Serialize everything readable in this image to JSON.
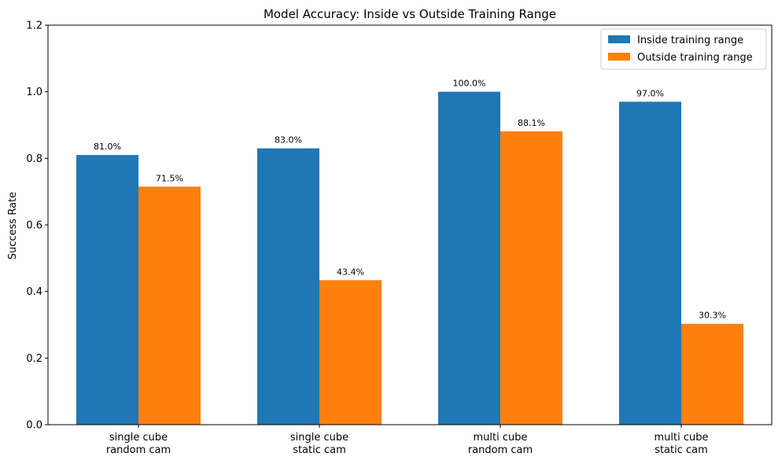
{
  "chart_data": {
    "type": "bar",
    "title": "Model Accuracy: Inside vs Outside Training Range",
    "ylabel": "Success Rate",
    "xlabel": "",
    "ylim": [
      0,
      1.2
    ],
    "yticks": [
      "0.0",
      "0.2",
      "0.4",
      "0.6",
      "0.8",
      "1.0",
      "1.2"
    ],
    "categories": [
      [
        "single cube",
        "random cam"
      ],
      [
        "single cube",
        "static cam"
      ],
      [
        "multi cube",
        "random cam"
      ],
      [
        "multi cube",
        "static cam"
      ]
    ],
    "series": [
      {
        "name": "Inside training range",
        "color": "#1f77b4",
        "values": [
          0.81,
          0.83,
          1.0,
          0.97
        ],
        "labels": [
          "81.0%",
          "83.0%",
          "100.0%",
          "97.0%"
        ]
      },
      {
        "name": "Outside training range",
        "color": "#ff7f0e",
        "values": [
          0.715,
          0.434,
          0.881,
          0.303
        ],
        "labels": [
          "71.5%",
          "43.4%",
          "88.1%",
          "30.3%"
        ]
      }
    ],
    "legend_position": "top-right",
    "grid": false
  }
}
